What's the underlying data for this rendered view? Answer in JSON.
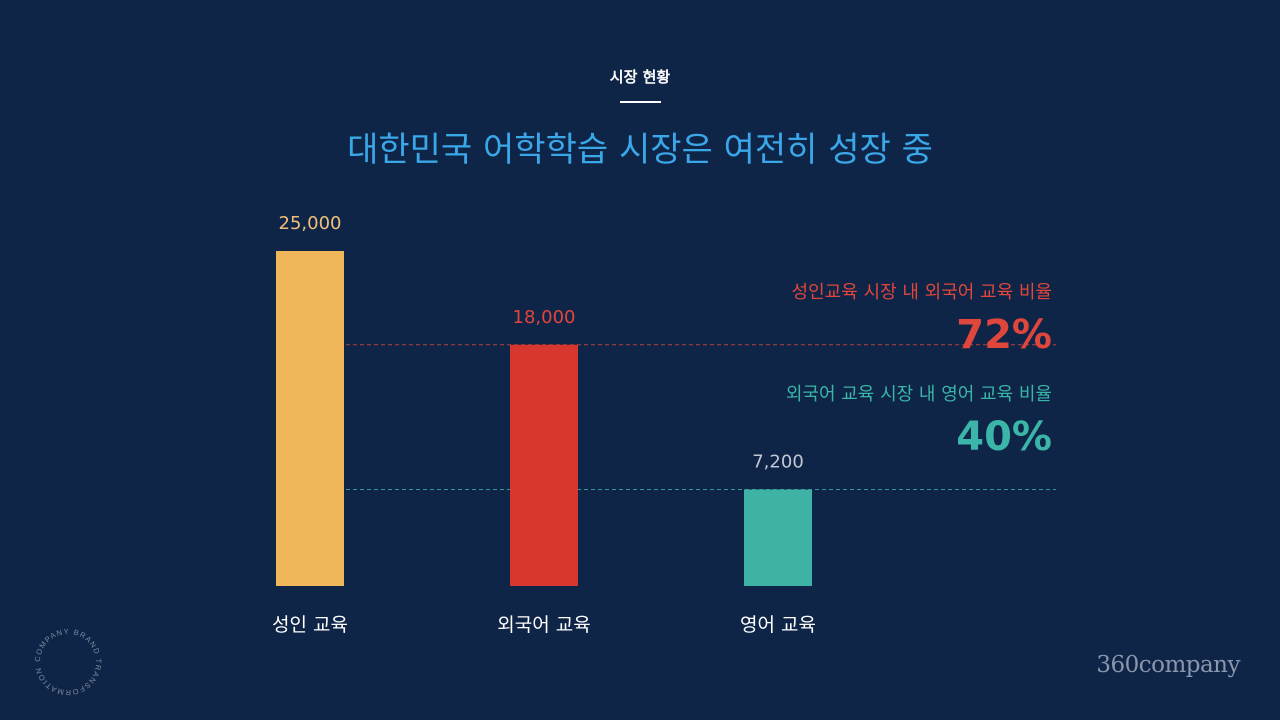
{
  "header": {
    "section_label": "시장 현황",
    "title": "대한민국 어학학습 시장은 여전히 성장 중"
  },
  "chart_data": {
    "type": "bar",
    "categories": [
      "성인 교육",
      "외국어 교육",
      "영어 교육"
    ],
    "values": [
      25000,
      18000,
      7200
    ],
    "value_labels": [
      "25,000",
      "18,000",
      "7,200"
    ],
    "colors": [
      "#efb65a",
      "#d8372f",
      "#3eb2a5"
    ],
    "title": "대한민국 어학학습 시장은 여전히 성장 중",
    "xlabel": "",
    "ylabel": "",
    "ylim": [
      0,
      25000
    ],
    "grid": false,
    "annotations": [
      {
        "label": "성인교육 시장 내 외국어 교육 비율",
        "value": "72%",
        "ref_value": 18000,
        "color": "#e0463c"
      },
      {
        "label": "외국어 교육 시장 내 영어 교육 비율",
        "value": "40%",
        "ref_value": 7200,
        "color": "#3ab5a8"
      }
    ]
  },
  "footer": {
    "brand": "360company",
    "ring_text": "COMPANY BRAND TRANSFORMATION"
  }
}
